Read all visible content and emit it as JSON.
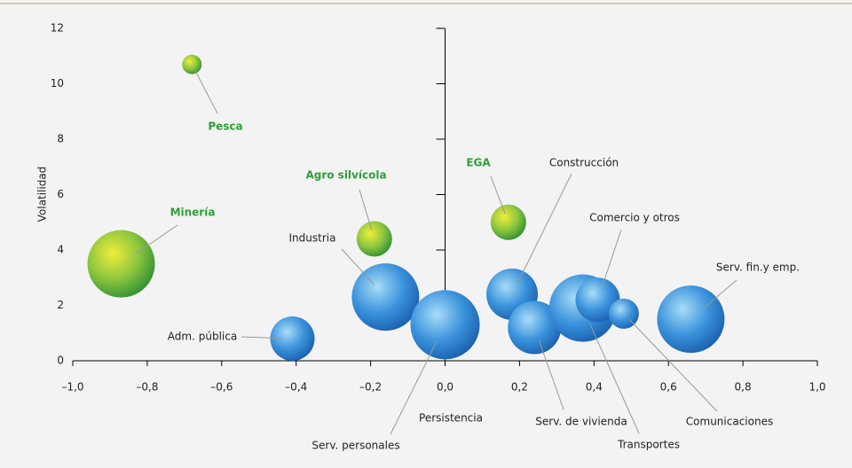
{
  "chart_data": {
    "type": "bubble",
    "x_label": "Persistencia",
    "y_label": "Volatilidad",
    "xlim": [
      -1.0,
      1.0
    ],
    "xticks": [
      {
        "value": -1.0,
        "label": "–1,0"
      },
      {
        "value": -0.8,
        "label": "–0,8"
      },
      {
        "value": -0.6,
        "label": "–0,6"
      },
      {
        "value": -0.4,
        "label": "–0,4"
      },
      {
        "value": -0.2,
        "label": "–0,2"
      },
      {
        "value": 0,
        "label": "0,0"
      },
      {
        "value": 0.2,
        "label": "0,2"
      },
      {
        "value": 0.4,
        "label": "0,4"
      },
      {
        "value": 0.6,
        "label": "0,6"
      },
      {
        "value": 0.8,
        "label": "0,8"
      },
      {
        "value": 1.0,
        "label": "1,0"
      }
    ],
    "ylim": [
      0,
      12
    ],
    "yticks": [
      0,
      2,
      4,
      6,
      8,
      10,
      12
    ],
    "points": [
      {
        "label": "Pesca",
        "x": -0.68,
        "y": 10.7,
        "size": 11,
        "color": "green"
      },
      {
        "label": "Minería",
        "x": -0.87,
        "y": 3.5,
        "size": 38,
        "color": "green"
      },
      {
        "label": "Agro silvícola",
        "x": -0.19,
        "y": 4.4,
        "size": 20,
        "color": "green"
      },
      {
        "label": "EGA",
        "x": 0.17,
        "y": 5.0,
        "size": 20,
        "color": "green"
      },
      {
        "label": "Industria",
        "x": -0.16,
        "y": 2.3,
        "size": 38,
        "color": "blue"
      },
      {
        "label": "Adm. pública",
        "x": -0.41,
        "y": 0.8,
        "size": 25,
        "color": "blue"
      },
      {
        "label": "Serv. personales",
        "x": 0.0,
        "y": 1.3,
        "size": 39,
        "color": "blue"
      },
      {
        "label": "Construcción",
        "x": 0.18,
        "y": 2.4,
        "size": 29,
        "color": "blue"
      },
      {
        "label": "Serv. de vivienda",
        "x": 0.24,
        "y": 1.2,
        "size": 30,
        "color": "blue"
      },
      {
        "label": "Transportes",
        "x": 0.37,
        "y": 1.9,
        "size": 38,
        "color": "blue"
      },
      {
        "label": "Comercio y otros",
        "x": 0.41,
        "y": 2.2,
        "size": 25,
        "color": "blue"
      },
      {
        "label": "Comunicaciones",
        "x": 0.48,
        "y": 1.7,
        "size": 17,
        "color": "blue"
      },
      {
        "label": "Serv. fin.y emp.",
        "x": 0.66,
        "y": 1.5,
        "size": 38,
        "color": "blue"
      }
    ]
  }
}
